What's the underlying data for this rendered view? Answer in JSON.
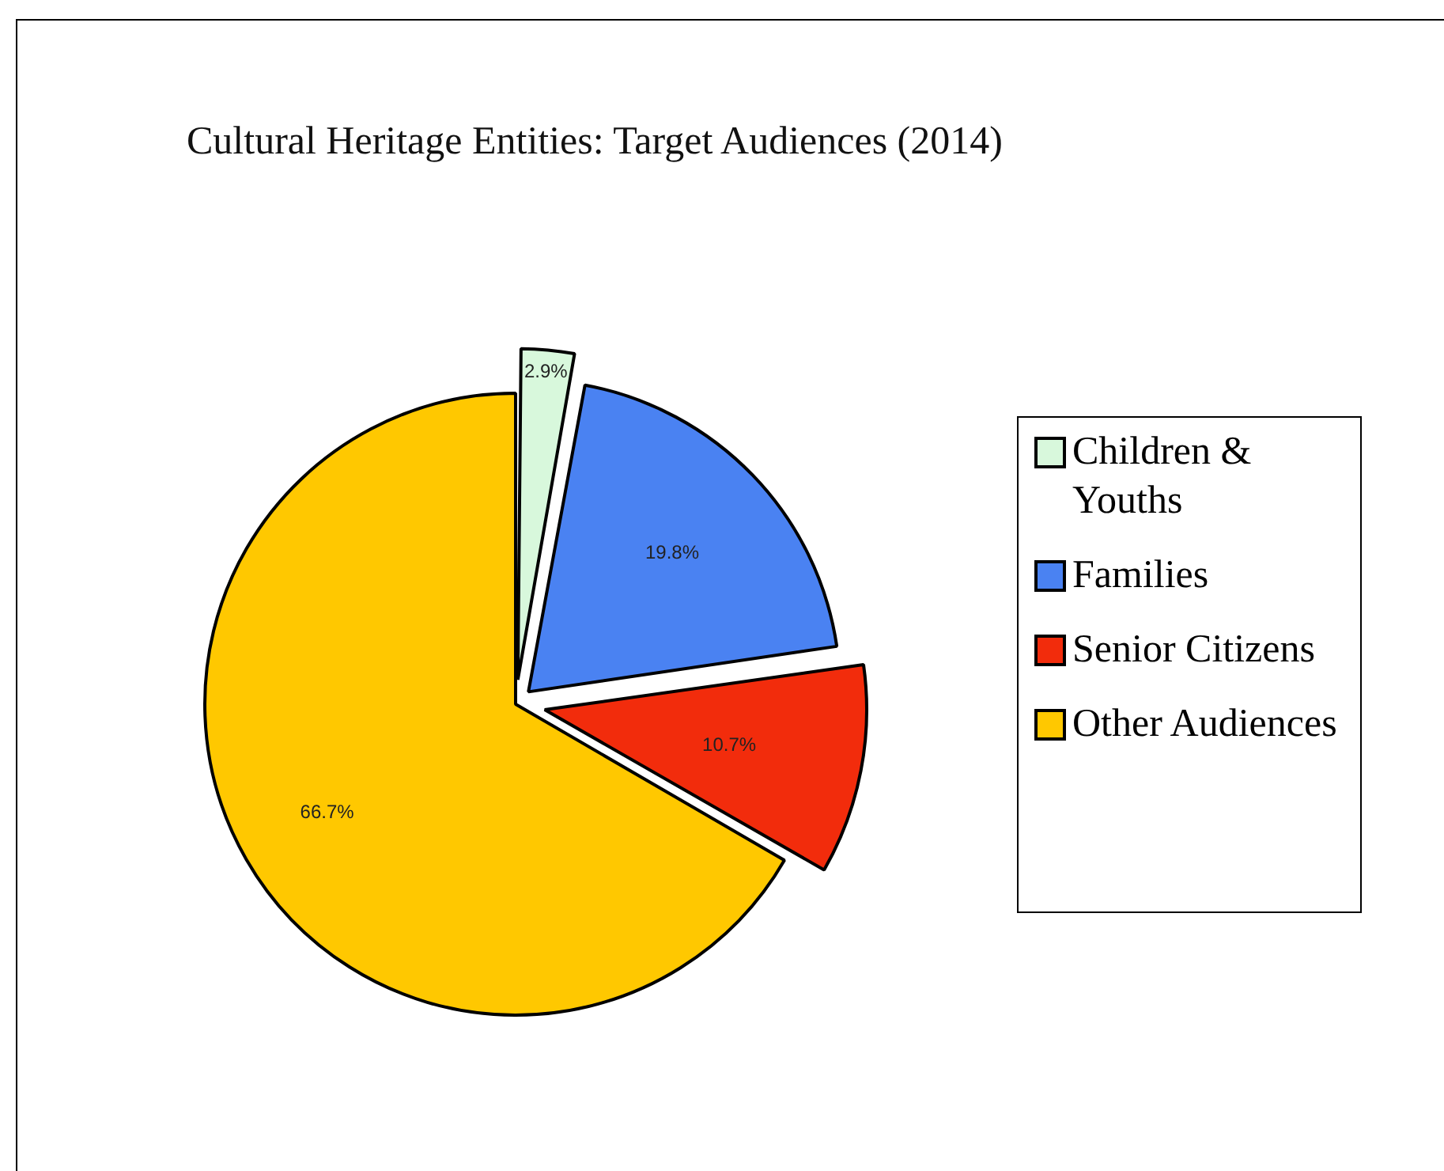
{
  "chart_data": {
    "type": "pie",
    "title": "Cultural Heritage Entities: Target Audiences (2014)",
    "categories": [
      "Children & Youths",
      "Families",
      "Senior Citizens",
      "Other Audiences"
    ],
    "values": [
      2.9,
      19.8,
      10.7,
      66.7
    ],
    "colors": [
      "#d8f8dc",
      "#4a82f2",
      "#f22c0c",
      "#ffc800"
    ],
    "value_labels": [
      "2.9%",
      "19.8%",
      "10.7%",
      "66.7%"
    ],
    "legend": "right"
  }
}
